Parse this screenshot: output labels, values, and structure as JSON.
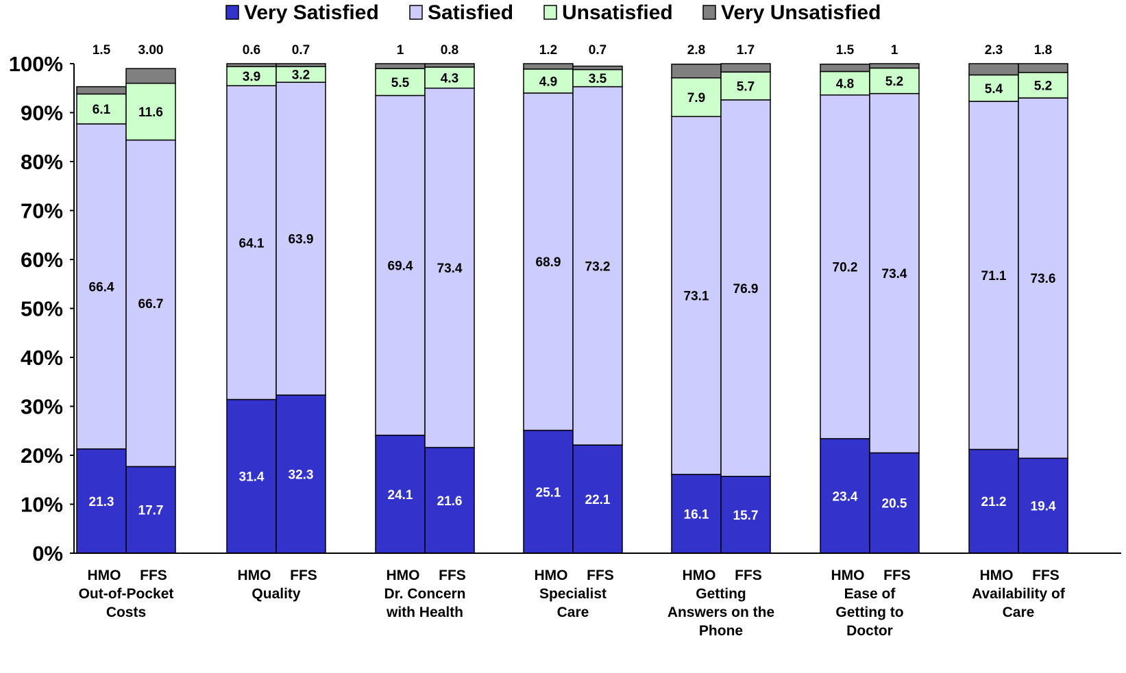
{
  "chart_data": {
    "type": "bar",
    "stacked": true,
    "percent_stacked": true,
    "legend_placement": "top",
    "grid": false,
    "ylim": [
      0,
      100
    ],
    "ytick_labels": [
      "0%",
      "10%",
      "20%",
      "30%",
      "40%",
      "50%",
      "60%",
      "70%",
      "80%",
      "90%",
      "100%"
    ],
    "legend": [
      "Very Satisfied",
      "Satisfied",
      "Unsatisfied",
      "Very Unsatisfied"
    ],
    "groups": [
      {
        "label": "Out-of-Pocket Costs",
        "label_lines": [
          "Out-of-Pocket",
          "Costs"
        ]
      },
      {
        "label": "Quality",
        "label_lines": [
          "Quality"
        ]
      },
      {
        "label": "Dr. Concern with Health",
        "label_lines": [
          "Dr. Concern",
          "with Health"
        ]
      },
      {
        "label": "Specialist Care",
        "label_lines": [
          "Specialist",
          "Care"
        ]
      },
      {
        "label": "Getting Answers on the Phone",
        "label_lines": [
          "Getting",
          "Answers on the",
          "Phone"
        ]
      },
      {
        "label": "Ease of Getting to Doctor",
        "label_lines": [
          "Ease of",
          "Getting to",
          "Doctor"
        ]
      },
      {
        "label": "Availability of Care",
        "label_lines": [
          "Availability of",
          "Care"
        ]
      }
    ],
    "bars": [
      "HMO",
      "FFS"
    ],
    "series": [
      {
        "name": "Very Satisfied",
        "color": "#3333cc",
        "label_color": "#ffffff",
        "values": [
          [
            21.3,
            17.7
          ],
          [
            31.4,
            32.3
          ],
          [
            24.1,
            21.6
          ],
          [
            25.1,
            22.1
          ],
          [
            16.1,
            15.7
          ],
          [
            23.4,
            20.5
          ],
          [
            21.2,
            19.4
          ]
        ],
        "labels": [
          [
            "21.3",
            "17.7"
          ],
          [
            "31.4",
            "32.3"
          ],
          [
            "24.1",
            "21.6"
          ],
          [
            "25.1",
            "22.1"
          ],
          [
            "16.1",
            "15.7"
          ],
          [
            "23.4",
            "20.5"
          ],
          [
            "21.2",
            "19.4"
          ]
        ]
      },
      {
        "name": "Satisfied",
        "color": "#ccccff",
        "label_color": "#000000",
        "values": [
          [
            66.4,
            66.7
          ],
          [
            64.1,
            63.9
          ],
          [
            69.4,
            73.4
          ],
          [
            68.9,
            73.2
          ],
          [
            73.1,
            76.9
          ],
          [
            70.2,
            73.4
          ],
          [
            71.1,
            73.6
          ]
        ],
        "labels": [
          [
            "66.4",
            "66.7"
          ],
          [
            "64.1",
            "63.9"
          ],
          [
            "69.4",
            "73.4"
          ],
          [
            "68.9",
            "73.2"
          ],
          [
            "73.1",
            "76.9"
          ],
          [
            "70.2",
            "73.4"
          ],
          [
            "71.1",
            "73.6"
          ]
        ]
      },
      {
        "name": "Unsatisfied",
        "color": "#ccffcc",
        "label_color": "#000000",
        "values": [
          [
            6.1,
            11.6
          ],
          [
            3.9,
            3.2
          ],
          [
            5.5,
            4.3
          ],
          [
            4.9,
            3.5
          ],
          [
            7.9,
            5.7
          ],
          [
            4.8,
            5.2
          ],
          [
            5.4,
            5.2
          ]
        ],
        "labels": [
          [
            "6.1",
            "11.6"
          ],
          [
            "3.9",
            "3.2"
          ],
          [
            "5.5",
            "4.3"
          ],
          [
            "4.9",
            "3.5"
          ],
          [
            "7.9",
            "5.7"
          ],
          [
            "4.8",
            "5.2"
          ],
          [
            "5.4",
            "5.2"
          ]
        ]
      },
      {
        "name": "Very Unsatisfied",
        "color": "#808080",
        "label_color": "#000000",
        "values": [
          [
            1.5,
            3.0
          ],
          [
            0.6,
            0.7
          ],
          [
            1,
            0.8
          ],
          [
            1.2,
            0.7
          ],
          [
            2.8,
            1.7
          ],
          [
            1.5,
            1
          ],
          [
            2.3,
            1.8
          ]
        ],
        "labels": [
          [
            "1.5",
            "3.00"
          ],
          [
            "0.6",
            "0.7"
          ],
          [
            "1",
            "0.8"
          ],
          [
            "1.2",
            "0.7"
          ],
          [
            "2.8",
            "1.7"
          ],
          [
            "1.5",
            "1"
          ],
          [
            "2.3",
            "1.8"
          ]
        ]
      }
    ]
  }
}
